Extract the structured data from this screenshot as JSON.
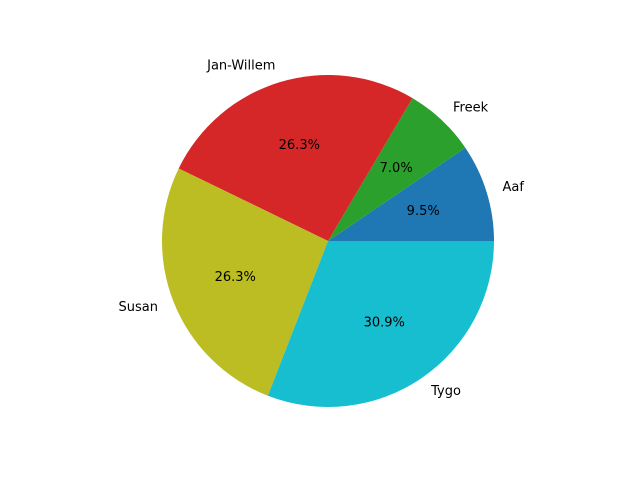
{
  "chart_data": {
    "type": "pie",
    "labels": [
      "Aaf",
      "Freek",
      "Jan-Willem",
      "Susan",
      "Tygo"
    ],
    "values": [
      9.5,
      7.0,
      26.3,
      26.3,
      30.9
    ],
    "percent_labels": [
      "9.5%",
      "7.0%",
      "26.3%",
      "26.3%",
      "30.9%"
    ],
    "colors": [
      "#1f77b4",
      "#2ca02c",
      "#d62728",
      "#bcbd22",
      "#17becf"
    ],
    "start_angle_deg": 0,
    "direction": "counterclockwise"
  }
}
